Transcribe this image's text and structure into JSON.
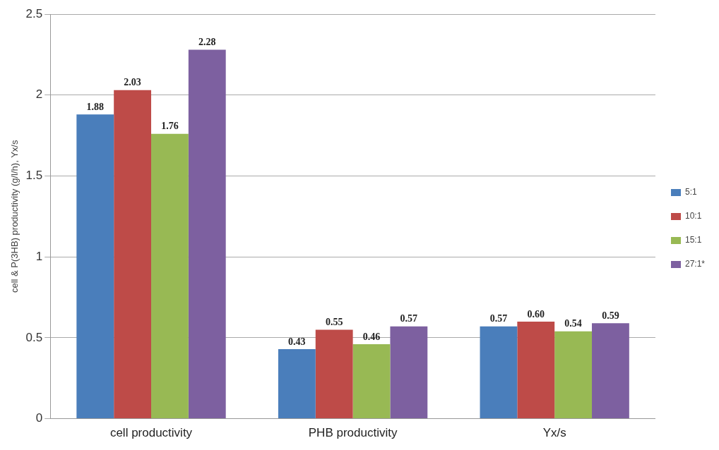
{
  "chart_data": {
    "type": "bar",
    "ylabel": "cell & P(3HB) productivity (g/l/h), Yx/s",
    "categories": [
      "cell productivity",
      "PHB productivity",
      "Yx/s"
    ],
    "series": [
      {
        "name": "5:1",
        "color": "#4a7ebb",
        "values": [
          1.88,
          0.43,
          0.57
        ],
        "value_labels": [
          "1.88",
          "0.43",
          "0.57"
        ]
      },
      {
        "name": "10:1",
        "color": "#be4b48",
        "values": [
          2.03,
          0.55,
          0.6
        ],
        "value_labels": [
          "2.03",
          "0.55",
          "0.60"
        ]
      },
      {
        "name": "15:1",
        "color": "#98b954",
        "values": [
          1.76,
          0.46,
          0.54
        ],
        "value_labels": [
          "1.76",
          "0.46",
          "0.54"
        ]
      },
      {
        "name": "27:1*",
        "color": "#7d60a0",
        "values": [
          2.28,
          0.57,
          0.59
        ],
        "value_labels": [
          "2.28",
          "0.57",
          "0.59"
        ]
      }
    ],
    "ylim": [
      0,
      2.5
    ],
    "yticks": [
      0,
      0.5,
      1,
      1.5,
      2,
      2.5
    ],
    "grid": "y",
    "legend": "right"
  }
}
